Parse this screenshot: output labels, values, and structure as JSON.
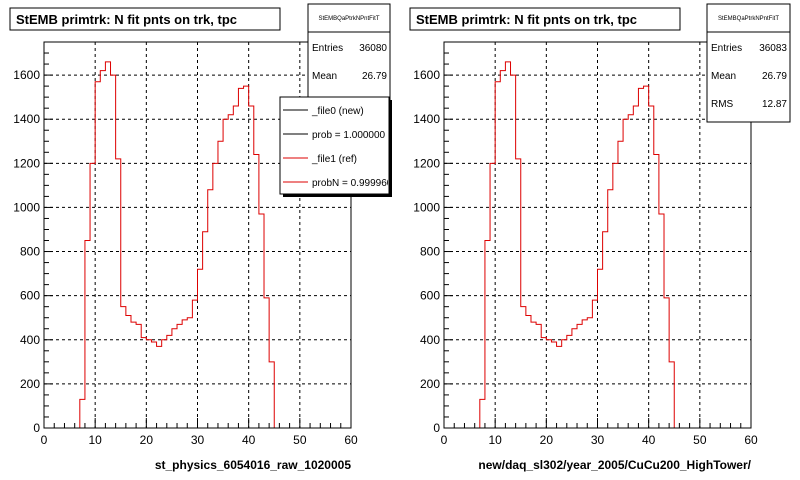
{
  "chart_data": [
    {
      "type": "histogram",
      "title": "StEMB primtrk: N fit pnts on trk, tpc",
      "xlabel": "st_physics_6054016_raw_1020005",
      "xlim": [
        0,
        60
      ],
      "ylim": [
        0,
        1750
      ],
      "xticks": [
        "0",
        "10",
        "20",
        "30",
        "40",
        "50",
        "60"
      ],
      "yticks": [
        "0",
        "200",
        "400",
        "600",
        "800",
        "1000",
        "1200",
        "1400",
        "1600"
      ],
      "grid": true,
      "bin_edges_start": 0,
      "bin_width": 1,
      "values": [
        0,
        0,
        0,
        0,
        0,
        0,
        0,
        130,
        850,
        1200,
        1570,
        1620,
        1660,
        1600,
        1220,
        550,
        510,
        480,
        470,
        410,
        400,
        390,
        370,
        400,
        420,
        450,
        470,
        490,
        500,
        580,
        720,
        890,
        1080,
        1200,
        1300,
        1400,
        1420,
        1460,
        1540,
        1550,
        1460,
        1240,
        970,
        590,
        300,
        0,
        0,
        0,
        0,
        0,
        0,
        0,
        0,
        0,
        0,
        0,
        0,
        0,
        0,
        0
      ],
      "stats": {
        "header": "StEMBQaPtrkNPntFitT",
        "rows": [
          {
            "label": "Entries",
            "value": "36080"
          },
          {
            "label": "Mean",
            "value": "26.79"
          }
        ]
      },
      "legend": [
        {
          "label": "_file0 (new)",
          "color": "#000000"
        },
        {
          "label": "prob = 1.000000",
          "color": "#000000"
        },
        {
          "label": "_file1 (ref)",
          "color": "#dd0000"
        },
        {
          "label": "probN = 0.999960",
          "color": "#dd0000"
        }
      ]
    },
    {
      "type": "histogram",
      "title": "StEMB primtrk: N fit pnts on trk, tpc",
      "xlabel": "new/daq_sl302/year_2005/CuCu200_HighTower/",
      "xlim": [
        0,
        60
      ],
      "ylim": [
        0,
        1750
      ],
      "xticks": [
        "0",
        "10",
        "20",
        "30",
        "40",
        "50",
        "60"
      ],
      "yticks": [
        "0",
        "200",
        "400",
        "600",
        "800",
        "1000",
        "1200",
        "1400",
        "1600"
      ],
      "grid": true,
      "bin_edges_start": 0,
      "bin_width": 1,
      "values": [
        0,
        0,
        0,
        0,
        0,
        0,
        0,
        130,
        850,
        1200,
        1570,
        1620,
        1660,
        1600,
        1220,
        550,
        510,
        480,
        470,
        410,
        400,
        390,
        370,
        400,
        420,
        450,
        470,
        490,
        500,
        580,
        720,
        890,
        1080,
        1200,
        1300,
        1400,
        1420,
        1460,
        1540,
        1550,
        1460,
        1240,
        970,
        590,
        300,
        0,
        0,
        0,
        0,
        0,
        0,
        0,
        0,
        0,
        0,
        0,
        0,
        0,
        0,
        0
      ],
      "stats": {
        "header": "StEMBQaPtrkNPntFitT",
        "rows": [
          {
            "label": "Entries",
            "value": "36083"
          },
          {
            "label": "Mean",
            "value": "26.79"
          },
          {
            "label": "RMS",
            "value": "12.87"
          }
        ]
      }
    }
  ],
  "colors": {
    "hist_line": "#dd0000",
    "frame": "#000000",
    "grid": "#000000"
  }
}
